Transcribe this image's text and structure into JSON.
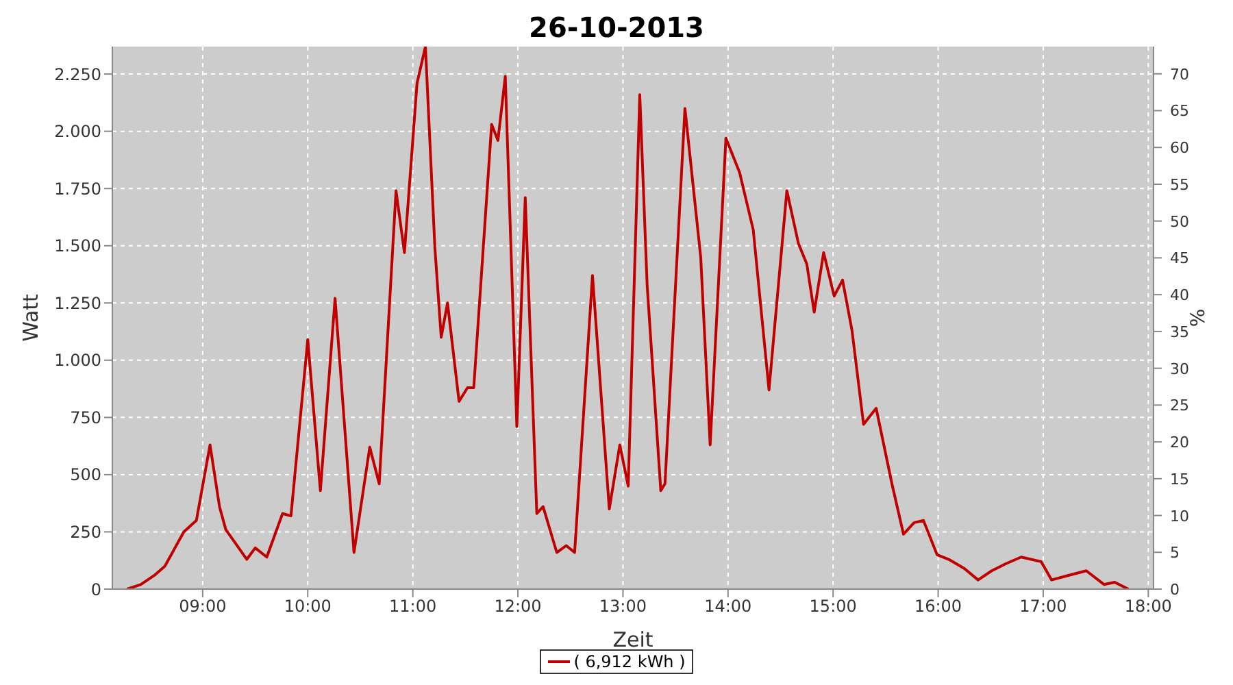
{
  "chart_data": {
    "type": "line",
    "title": "26-10-2013",
    "xlabel": "Zeit",
    "ylabel": "Watt",
    "y2label": "%",
    "xlim": [
      8.14,
      18.05
    ],
    "xticks": [
      {
        "value": 9,
        "label": "09:00"
      },
      {
        "value": 10,
        "label": "10:00"
      },
      {
        "value": 11,
        "label": "11:00"
      },
      {
        "value": 12,
        "label": "12:00"
      },
      {
        "value": 13,
        "label": "13:00"
      },
      {
        "value": 14,
        "label": "14:00"
      },
      {
        "value": 15,
        "label": "15:00"
      },
      {
        "value": 16,
        "label": "16:00"
      },
      {
        "value": 17,
        "label": "17:00"
      },
      {
        "value": 18,
        "label": "18:00"
      }
    ],
    "ylim": [
      0,
      2370
    ],
    "yticks": [
      {
        "value": 0,
        "label": "0"
      },
      {
        "value": 250,
        "label": "250"
      },
      {
        "value": 500,
        "label": "500"
      },
      {
        "value": 750,
        "label": "750"
      },
      {
        "value": 1000,
        "label": "1.000"
      },
      {
        "value": 1250,
        "label": "1.250"
      },
      {
        "value": 1500,
        "label": "1.500"
      },
      {
        "value": 1750,
        "label": "1.750"
      },
      {
        "value": 2000,
        "label": "2.000"
      },
      {
        "value": 2250,
        "label": "2.250"
      }
    ],
    "y2lim": [
      0,
      73.7
    ],
    "y2ticks": [
      0,
      5,
      10,
      15,
      20,
      25,
      30,
      35,
      40,
      45,
      50,
      55,
      60,
      65,
      70
    ],
    "grid": true,
    "legend": "bottom",
    "marker": "none",
    "line_style": "solid",
    "x": [
      8.28,
      8.41,
      8.54,
      8.64,
      8.82,
      8.94,
      9.07,
      9.16,
      9.22,
      9.42,
      9.5,
      9.61,
      9.76,
      9.84,
      10.0,
      10.12,
      10.26,
      10.44,
      10.59,
      10.68,
      10.84,
      10.92,
      11.04,
      11.12,
      11.21,
      11.27,
      11.33,
      11.44,
      11.52,
      11.58,
      11.75,
      11.81,
      11.88,
      11.99,
      12.07,
      12.18,
      12.24,
      12.37,
      12.46,
      12.54,
      12.71,
      12.87,
      12.97,
      13.05,
      13.16,
      13.23,
      13.36,
      13.4,
      13.59,
      13.74,
      13.83,
      13.98,
      14.11,
      14.24,
      14.39,
      14.56,
      14.67,
      14.75,
      14.82,
      14.91,
      15.01,
      15.09,
      15.18,
      15.29,
      15.41,
      15.56,
      15.67,
      15.77,
      15.86,
      15.99,
      16.1,
      16.25,
      16.38,
      16.51,
      16.64,
      16.79,
      16.98,
      17.08,
      17.24,
      17.41,
      17.58,
      17.68,
      17.81
    ],
    "series": [
      {
        "name": "( 6,912 kWh )",
        "color": "#c00000",
        "values": [
          0,
          20,
          60,
          100,
          250,
          300,
          630,
          360,
          260,
          130,
          180,
          140,
          330,
          320,
          1090,
          430,
          1270,
          160,
          620,
          460,
          1740,
          1470,
          2210,
          2370,
          1490,
          1100,
          1250,
          820,
          880,
          880,
          2030,
          1960,
          2240,
          710,
          1710,
          330,
          360,
          160,
          190,
          160,
          1370,
          350,
          630,
          450,
          2160,
          1330,
          430,
          460,
          2100,
          1450,
          630,
          1970,
          1820,
          1570,
          870,
          1740,
          1510,
          1420,
          1210,
          1470,
          1280,
          1350,
          1130,
          720,
          790,
          460,
          240,
          290,
          300,
          150,
          130,
          90,
          40,
          80,
          110,
          140,
          120,
          40,
          60,
          80,
          20,
          30,
          0
        ]
      }
    ]
  }
}
